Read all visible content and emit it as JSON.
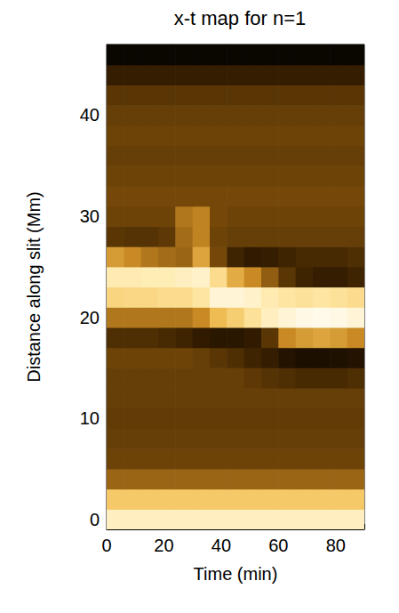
{
  "chart_data": {
    "type": "heatmap",
    "title": "x-t map for n=1",
    "x_label": "Time (min)",
    "y_label": "Distance along slit (Mm)",
    "xlim": [
      0,
      90
    ],
    "xticks": [
      0,
      20,
      40,
      60,
      80
    ],
    "ylim": [
      -1,
      47
    ],
    "yticks": [
      0,
      10,
      20,
      30,
      40
    ],
    "x_bins": [
      0,
      6,
      12,
      18,
      24,
      30,
      36,
      42,
      48,
      54,
      60,
      66,
      72,
      78,
      84,
      90
    ],
    "y_bins": [
      -1,
      1,
      3,
      5,
      7,
      9,
      11,
      13,
      15,
      17,
      19,
      21,
      23,
      25,
      27,
      29,
      31,
      33,
      35,
      37,
      39,
      41,
      43,
      45,
      47
    ],
    "zlim": [
      0,
      100
    ],
    "grid": false,
    "cells": [
      [
        88,
        88,
        88,
        88,
        88,
        88,
        88,
        88,
        88,
        88,
        88,
        88,
        88,
        88,
        88
      ],
      [
        70,
        70,
        70,
        70,
        70,
        70,
        70,
        70,
        70,
        70,
        70,
        70,
        70,
        70,
        70
      ],
      [
        40,
        40,
        40,
        40,
        40,
        40,
        40,
        40,
        40,
        40,
        40,
        40,
        40,
        40,
        40
      ],
      [
        30,
        30,
        30,
        30,
        30,
        30,
        30,
        30,
        30,
        30,
        30,
        30,
        30,
        30,
        30
      ],
      [
        28,
        28,
        28,
        28,
        28,
        28,
        28,
        28,
        28,
        28,
        28,
        28,
        28,
        28,
        28
      ],
      [
        27,
        27,
        27,
        27,
        27,
        27,
        27,
        27,
        27,
        27,
        27,
        27,
        27,
        27,
        27
      ],
      [
        28,
        28,
        28,
        28,
        28,
        28,
        28,
        28,
        28,
        28,
        28,
        28,
        28,
        28,
        28
      ],
      [
        28,
        28,
        28,
        28,
        28,
        28,
        28,
        28,
        26,
        24,
        22,
        20,
        20,
        20,
        22
      ],
      [
        30,
        30,
        30,
        30,
        30,
        28,
        25,
        22,
        18,
        15,
        10,
        8,
        8,
        9,
        10
      ],
      [
        22,
        22,
        22,
        20,
        18,
        14,
        12,
        12,
        14,
        25,
        50,
        55,
        58,
        55,
        50
      ],
      [
        45,
        45,
        45,
        45,
        45,
        50,
        65,
        72,
        80,
        88,
        92,
        95,
        96,
        95,
        92
      ],
      [
        75,
        76,
        76,
        78,
        78,
        82,
        92,
        92,
        90,
        85,
        82,
        80,
        82,
        80,
        78
      ],
      [
        85,
        85,
        86,
        86,
        88,
        90,
        78,
        60,
        50,
        38,
        25,
        18,
        15,
        15,
        18
      ],
      [
        55,
        50,
        45,
        42,
        40,
        58,
        32,
        18,
        14,
        15,
        18,
        20,
        20,
        20,
        22
      ],
      [
        25,
        24,
        24,
        26,
        42,
        48,
        30,
        28,
        28,
        28,
        28,
        28,
        28,
        28,
        28
      ],
      [
        30,
        30,
        30,
        30,
        45,
        48,
        32,
        30,
        30,
        30,
        30,
        30,
        30,
        30,
        30
      ],
      [
        32,
        32,
        32,
        32,
        32,
        32,
        32,
        32,
        32,
        32,
        32,
        32,
        32,
        32,
        32
      ],
      [
        30,
        30,
        30,
        30,
        30,
        30,
        30,
        30,
        30,
        30,
        30,
        30,
        30,
        30,
        30
      ],
      [
        28,
        28,
        28,
        28,
        28,
        28,
        28,
        28,
        28,
        28,
        28,
        28,
        28,
        28,
        28
      ],
      [
        30,
        30,
        30,
        30,
        30,
        30,
        30,
        30,
        30,
        30,
        30,
        30,
        30,
        30,
        30
      ],
      [
        28,
        28,
        28,
        28,
        28,
        28,
        28,
        28,
        28,
        28,
        28,
        28,
        28,
        28,
        28
      ],
      [
        25,
        25,
        25,
        25,
        25,
        25,
        25,
        25,
        25,
        25,
        25,
        25,
        25,
        25,
        25
      ],
      [
        15,
        15,
        15,
        15,
        15,
        15,
        15,
        15,
        15,
        15,
        15,
        15,
        15,
        15,
        15
      ],
      [
        3,
        3,
        3,
        3,
        3,
        3,
        3,
        3,
        3,
        3,
        3,
        3,
        3,
        3,
        3
      ]
    ]
  }
}
